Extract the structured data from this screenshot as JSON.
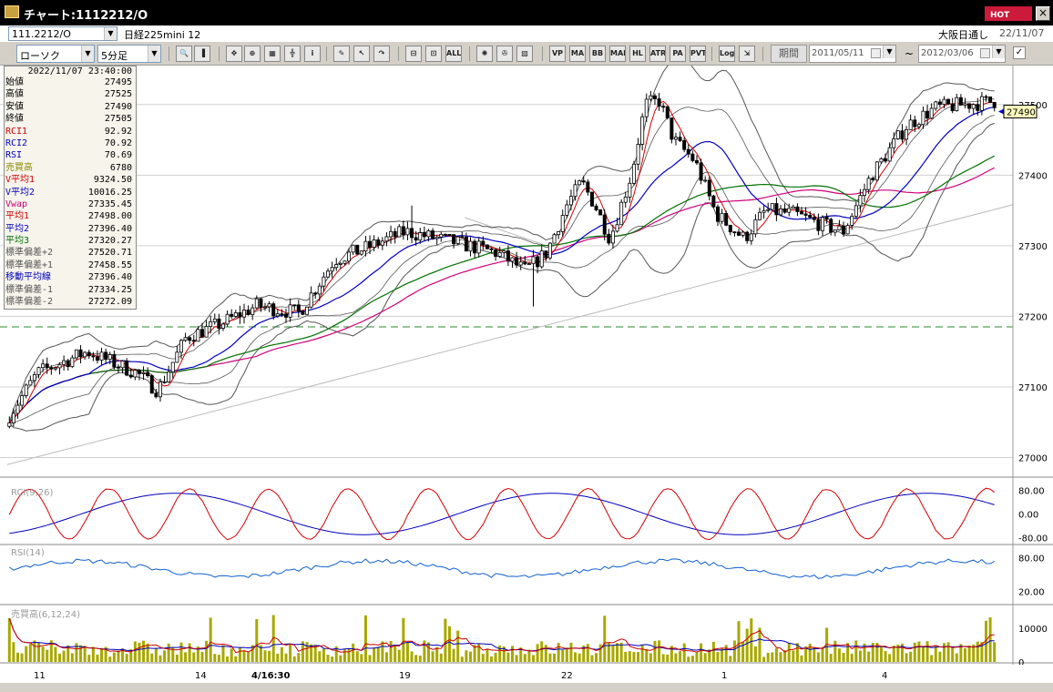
{
  "window": {
    "title": "チャート:1112212/O",
    "hot_label": "HOT",
    "close_label": "×"
  },
  "header": {
    "symbol": "111.2212/O",
    "market_name": "日経225mini 12",
    "session_label": "大阪日通し",
    "session_date": "22/11/07"
  },
  "toolbar": {
    "chart_type": "ローソク",
    "interval": "5分足",
    "period_label": "期間",
    "date_from": "2011/05/11",
    "date_to": "2012/03/06",
    "tilde": "~",
    "buttons": [
      {
        "name": "zoom-icon",
        "glyph": "🔍"
      },
      {
        "name": "bar-icon",
        "glyph": "▐"
      },
      {
        "name": "crosshair-icon",
        "glyph": "✥"
      },
      {
        "name": "magnify-icon",
        "glyph": "⊕"
      },
      {
        "name": "grid-icon",
        "glyph": "▦"
      },
      {
        "name": "split-icon",
        "glyph": "╬"
      },
      {
        "name": "info-icon",
        "glyph": "i"
      },
      {
        "name": "pencil-icon",
        "glyph": "✎"
      },
      {
        "name": "cursor-icon",
        "glyph": "↖"
      },
      {
        "name": "redo-icon",
        "glyph": "↷"
      },
      {
        "name": "candle-icon",
        "glyph": "⊟"
      },
      {
        "name": "bidask-icon",
        "glyph": "⊡"
      },
      {
        "name": "all-icon",
        "glyph": "ALL"
      },
      {
        "name": "settings-icon",
        "glyph": "✺"
      },
      {
        "name": "wrench-icon",
        "glyph": "✇"
      },
      {
        "name": "palette-icon",
        "glyph": "▨"
      },
      {
        "name": "vp-icon",
        "glyph": "VP"
      },
      {
        "name": "ma-icon",
        "glyph": "MA"
      },
      {
        "name": "bb-icon",
        "glyph": "BB"
      },
      {
        "name": "mae-icon",
        "glyph": "MAE"
      },
      {
        "name": "hl-icon",
        "glyph": "HL"
      },
      {
        "name": "atr-icon",
        "glyph": "ATR"
      },
      {
        "name": "pa-icon",
        "glyph": "PA"
      },
      {
        "name": "pvt-icon",
        "glyph": "PVT"
      },
      {
        "name": "log-icon",
        "glyph": "Log"
      },
      {
        "name": "export-icon",
        "glyph": "⇲"
      }
    ]
  },
  "info": {
    "timestamp": "2022/11/07 23:40:00",
    "rows": [
      {
        "label": "始値",
        "value": "27495",
        "color": "#000000"
      },
      {
        "label": "高値",
        "value": "27525",
        "color": "#000000"
      },
      {
        "label": "安値",
        "value": "27490",
        "color": "#000000"
      },
      {
        "label": "終値",
        "value": "27505",
        "color": "#000000"
      },
      {
        "label": "RCI1",
        "value": "92.92",
        "color": "#d00000"
      },
      {
        "label": "RCI2",
        "value": "70.92",
        "color": "#0000c0"
      },
      {
        "label": "RSI",
        "value": "70.69",
        "color": "#0000c0"
      },
      {
        "label": "売買高",
        "value": "6780",
        "color": "#8a8a00"
      },
      {
        "label": "V平均1",
        "value": "9324.50",
        "color": "#d00000"
      },
      {
        "label": "V平均2",
        "value": "10016.25",
        "color": "#0000c0"
      },
      {
        "label": "Vwap",
        "value": "27335.45",
        "color": "#d0007a"
      },
      {
        "label": "平均1",
        "value": "27498.00",
        "color": "#d00000"
      },
      {
        "label": "平均2",
        "value": "27396.40",
        "color": "#0000c0"
      },
      {
        "label": "平均3",
        "value": "27320.27",
        "color": "#007000"
      },
      {
        "label": "標準偏差+2",
        "value": "27520.71",
        "color": "#555555"
      },
      {
        "label": "標準偏差+1",
        "value": "27458.55",
        "color": "#555555"
      },
      {
        "label": "移動平均線",
        "value": "27396.40",
        "color": "#0000c0"
      },
      {
        "label": "標準偏差-1",
        "value": "27334.25",
        "color": "#555555"
      },
      {
        "label": "標準偏差-2",
        "value": "27272.09",
        "color": "#555555"
      }
    ]
  },
  "chart_data": [
    {
      "type": "candlestick",
      "y_ticks": [
        "27500",
        "27400",
        "27300",
        "27200",
        "27100",
        "27000"
      ],
      "ylim": [
        26980,
        27550
      ],
      "current_price": "27490",
      "reference_line": 27185,
      "x_labels": [
        "11",
        "14",
        "4/16:30",
        "19",
        "22",
        "1",
        "4"
      ],
      "colors": {
        "up": "#ffffff",
        "down": "#000000",
        "ma1": "#d00000",
        "ma2": "#0000c0",
        "ma3": "#007000",
        "vwap": "#d0007a",
        "band": "#555555"
      }
    },
    {
      "type": "line",
      "title": "RCI(9,26)",
      "y_ticks": [
        "80.00",
        "0.00",
        "-80.00"
      ],
      "ylim": [
        -100,
        100
      ]
    },
    {
      "type": "line",
      "title": "RSI(14)",
      "y_ticks": [
        "80.00",
        "20.00"
      ],
      "ylim": [
        0,
        100
      ]
    },
    {
      "type": "bar",
      "title": "売買高(6,12,24)",
      "y_ticks": [
        "10000",
        "0"
      ],
      "ylim": [
        0,
        16000
      ]
    }
  ]
}
